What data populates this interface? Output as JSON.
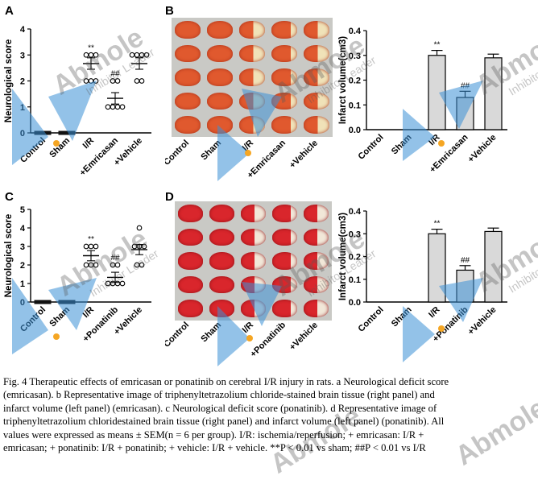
{
  "panels": {
    "a": {
      "label": "A"
    },
    "b": {
      "label": "B"
    },
    "c": {
      "label": "C"
    },
    "d": {
      "label": "D"
    }
  },
  "chart_data": [
    {
      "panel": "A",
      "type": "scatter",
      "ylabel": "Neurological score",
      "ylim": [
        0,
        4
      ],
      "yticks": [
        "0",
        "1",
        "2",
        "3",
        "4"
      ],
      "categories": [
        "Control",
        "Sham",
        "I/R",
        "+Emricasan",
        "+Vehicle"
      ],
      "means": [
        0,
        0,
        2.67,
        1.33,
        2.67
      ],
      "points": [
        [
          0,
          0,
          0,
          0,
          0,
          0
        ],
        [
          0,
          0,
          0,
          0,
          0,
          0
        ],
        [
          3,
          3,
          3,
          2,
          2,
          2
        ],
        [
          2,
          1,
          1,
          1,
          2,
          1
        ],
        [
          3,
          3,
          2,
          3,
          2,
          3
        ]
      ],
      "annotations": [
        "",
        "",
        "**",
        "##",
        ""
      ]
    },
    {
      "panel": "B",
      "type": "bar",
      "ylabel": "Infarct volume(cm3)",
      "ylim": [
        0,
        0.4
      ],
      "yticks": [
        "0.0",
        "0.1",
        "0.2",
        "0.3",
        "0.4"
      ],
      "categories": [
        "Control",
        "Sham",
        "I/R",
        "+Emricasan",
        "+Vehicle"
      ],
      "values": [
        0,
        0,
        0.3,
        0.13,
        0.29
      ],
      "errors": [
        0,
        0,
        0.02,
        0.025,
        0.015
      ],
      "annotations": [
        "",
        "",
        "**",
        "##",
        ""
      ],
      "image_labels": [
        "Control",
        "Sham",
        "I/R",
        "+Emricasan",
        "+Vehicle"
      ]
    },
    {
      "panel": "C",
      "type": "scatter",
      "ylabel": "Neurological score",
      "ylim": [
        0,
        5
      ],
      "yticks": [
        "0",
        "1",
        "2",
        "3",
        "4",
        "5"
      ],
      "categories": [
        "Control",
        "Sham",
        "I/R",
        "+Ponatinib",
        "+Vehicle"
      ],
      "means": [
        0,
        0,
        2.5,
        1.33,
        2.83
      ],
      "points": [
        [
          0,
          0,
          0,
          0,
          0,
          0
        ],
        [
          0,
          0,
          0,
          0,
          0,
          0
        ],
        [
          3,
          3,
          3,
          2,
          2,
          2
        ],
        [
          2,
          2,
          1,
          1,
          1,
          1
        ],
        [
          4,
          3,
          3,
          3,
          2,
          2
        ]
      ],
      "annotations": [
        "",
        "",
        "**",
        "##",
        ""
      ]
    },
    {
      "panel": "D",
      "type": "bar",
      "ylabel": "Infarct volume(cm3)",
      "ylim": [
        0,
        0.4
      ],
      "yticks": [
        "0.0",
        "0.1",
        "0.2",
        "0.3",
        "0.4"
      ],
      "categories": [
        "Control",
        "Sham",
        "I/R",
        "+Ponatinib",
        "+Vehicle"
      ],
      "values": [
        0,
        0,
        0.3,
        0.14,
        0.31
      ],
      "errors": [
        0,
        0,
        0.02,
        0.02,
        0.015
      ],
      "annotations": [
        "",
        "",
        "**",
        "##",
        ""
      ],
      "image_labels": [
        "Control",
        "Sham",
        "I/R",
        "+Ponatinib",
        "+Vehicle"
      ]
    }
  ],
  "watermark": {
    "brand": "Abmole",
    "tagline": "Inhibitor Leader"
  },
  "caption": {
    "line1": "Fig. 4 Therapeutic effects of emricasan or ponatinib on cerebral I/R injury in rats. a Neurological deficit score",
    "line2": "(emricasan). b Representative image of triphenyltetrazolium chloride-stained brain tissue (right panel) and",
    "line3": "infarct volume (left panel) (emricasan). c Neurological deficit score (ponatinib). d Representative image of",
    "line4": "triphenyltetrazolium chloridestained brain tissue (right panel) and infarct volume (left panel) (ponatinib). All",
    "line5": "values were expressed as means ± SEM(n = 6 per group). I/R: ischemia/reperfusion; + emricasan: I/R +",
    "line6": "emricasan; + ponatinib: I/R + ponatinib; + vehicle: I/R + vehicle. **P < 0.01 vs sham; ##P < 0.01 vs I/R"
  }
}
